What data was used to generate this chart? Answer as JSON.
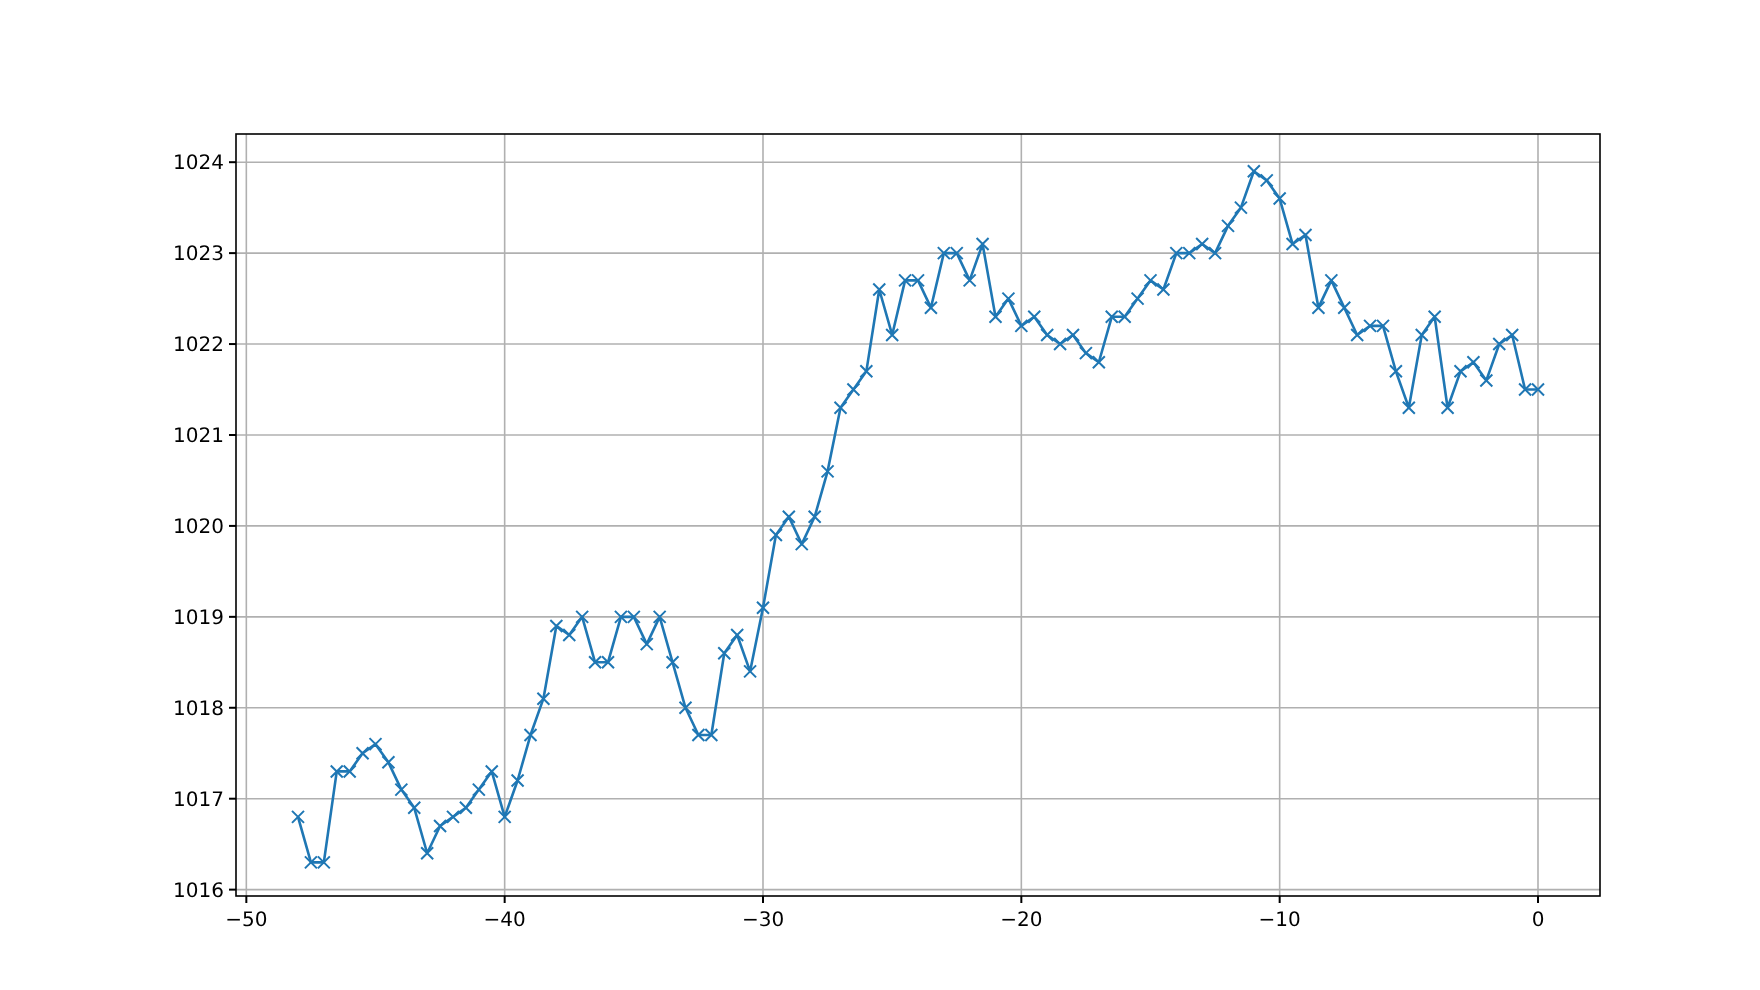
{
  "chart_data": {
    "type": "line",
    "color": "#1f77b4",
    "marker": "cross",
    "grid": true,
    "x": [
      -48,
      -47.5,
      -47,
      -46.5,
      -46,
      -45.5,
      -45,
      -44.5,
      -44,
      -43.5,
      -43,
      -42.5,
      -42,
      -41.5,
      -41,
      -40.5,
      -40,
      -39.5,
      -39,
      -38.5,
      -38,
      -37.5,
      -37,
      -36.5,
      -36,
      -35.5,
      -35,
      -34.5,
      -34,
      -33.5,
      -33,
      -32.5,
      -32,
      -31.5,
      -31,
      -30.5,
      -30,
      -29.5,
      -29,
      -28.5,
      -28,
      -27.5,
      -27,
      -26.5,
      -26,
      -25.5,
      -25,
      -24.5,
      -24,
      -23.5,
      -23,
      -22.5,
      -22,
      -21.5,
      -21,
      -20.5,
      -20,
      -19.5,
      -19,
      -18.5,
      -18,
      -17.5,
      -17,
      -16.5,
      -16,
      -15.5,
      -15,
      -14.5,
      -14,
      -13.5,
      -13,
      -12.5,
      -12,
      -11.5,
      -11,
      -10.5,
      -10,
      -9.5,
      -9,
      -8.5,
      -8,
      -7.5,
      -7,
      -6.5,
      -6,
      -5.5,
      -5,
      -4.5,
      -4,
      -3.5,
      -3,
      -2.5,
      -2,
      -1.5,
      -1,
      -0.5,
      0
    ],
    "values": [
      1016.8,
      1016.3,
      1016.3,
      1017.3,
      1017.3,
      1017.5,
      1017.6,
      1017.4,
      1017.1,
      1016.9,
      1016.4,
      1016.7,
      1016.8,
      1016.9,
      1017.1,
      1017.3,
      1016.8,
      1017.2,
      1017.7,
      1018.1,
      1018.9,
      1018.8,
      1019.0,
      1018.5,
      1018.5,
      1019.0,
      1019.0,
      1018.7,
      1019.0,
      1018.5,
      1018.0,
      1017.7,
      1017.7,
      1018.6,
      1018.8,
      1018.4,
      1019.1,
      1019.9,
      1020.1,
      1019.8,
      1020.1,
      1020.6,
      1021.3,
      1021.5,
      1021.7,
      1022.6,
      1022.1,
      1022.7,
      1022.7,
      1022.4,
      1023.0,
      1023.0,
      1022.7,
      1023.1,
      1022.3,
      1022.5,
      1022.2,
      1022.3,
      1022.1,
      1022.0,
      1022.1,
      1021.9,
      1021.8,
      1022.3,
      1022.3,
      1022.5,
      1022.7,
      1022.6,
      1023.0,
      1023.0,
      1023.1,
      1023.0,
      1023.3,
      1023.5,
      1023.9,
      1023.8,
      1023.6,
      1023.1,
      1023.2,
      1022.4,
      1022.7,
      1022.4,
      1022.1,
      1022.2,
      1022.2,
      1021.7,
      1021.3,
      1022.1,
      1022.3,
      1021.3,
      1021.7,
      1021.8,
      1021.6,
      1022.0,
      1022.1,
      1021.5,
      1021.5
    ],
    "xlim": [
      -50.4,
      2.4
    ],
    "xticks": [
      -50,
      -40,
      -30,
      -20,
      -10,
      0
    ],
    "ylim": [
      1015.93,
      1024.31
    ],
    "yticks": [
      1016,
      1017,
      1018,
      1019,
      1020,
      1021,
      1022,
      1023,
      1024
    ]
  }
}
